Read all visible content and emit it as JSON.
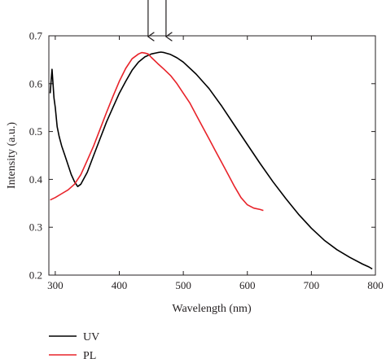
{
  "chart_data": {
    "type": "line",
    "xlabel": "Wavelength (nm)",
    "ylabel": "Intensity (a.u.)",
    "xlim": [
      290,
      800
    ],
    "ylim": [
      0.2,
      0.7
    ],
    "xticks": [
      300,
      400,
      500,
      600,
      700,
      800
    ],
    "yticks": [
      0.2,
      0.3,
      0.4,
      0.5,
      0.6,
      0.7
    ],
    "xtick_labels": [
      "300",
      "400",
      "500",
      "600",
      "700",
      "800"
    ],
    "ytick_labels": [
      "0.2",
      "0.3",
      "0.4",
      "0.5",
      "0.6",
      "0.7"
    ],
    "grid": false,
    "legend_position": "bottom-left, below plot",
    "annotations": [
      {
        "type": "arrow",
        "direction": "down",
        "x": 445
      },
      {
        "type": "arrow",
        "direction": "down",
        "x": 473
      }
    ],
    "series": [
      {
        "name": "UV",
        "color": "#000000",
        "x": [
          292,
          295,
          298,
          300,
          303,
          306,
          310,
          315,
          320,
          325,
          330,
          335,
          340,
          350,
          360,
          370,
          380,
          390,
          400,
          410,
          420,
          430,
          440,
          450,
          460,
          465,
          470,
          480,
          490,
          500,
          520,
          540,
          560,
          580,
          600,
          620,
          640,
          660,
          680,
          700,
          720,
          740,
          760,
          780,
          790,
          795
        ],
        "y": [
          0.58,
          0.63,
          0.57,
          0.55,
          0.51,
          0.49,
          0.47,
          0.45,
          0.43,
          0.41,
          0.395,
          0.385,
          0.39,
          0.415,
          0.45,
          0.485,
          0.52,
          0.55,
          0.58,
          0.605,
          0.628,
          0.645,
          0.656,
          0.662,
          0.665,
          0.666,
          0.665,
          0.661,
          0.654,
          0.645,
          0.62,
          0.59,
          0.553,
          0.513,
          0.473,
          0.433,
          0.395,
          0.36,
          0.327,
          0.298,
          0.273,
          0.253,
          0.237,
          0.223,
          0.217,
          0.213
        ]
      },
      {
        "name": "PL",
        "color": "#e8232a",
        "x": [
          292,
          300,
          310,
          320,
          330,
          340,
          350,
          360,
          370,
          380,
          390,
          400,
          410,
          420,
          430,
          435,
          440,
          445,
          450,
          460,
          470,
          480,
          490,
          500,
          510,
          520,
          530,
          540,
          550,
          560,
          570,
          580,
          590,
          600,
          610,
          620,
          625
        ],
        "y": [
          0.357,
          0.362,
          0.37,
          0.378,
          0.39,
          0.41,
          0.44,
          0.47,
          0.505,
          0.54,
          0.573,
          0.605,
          0.632,
          0.652,
          0.662,
          0.665,
          0.664,
          0.662,
          0.655,
          0.642,
          0.63,
          0.617,
          0.6,
          0.58,
          0.56,
          0.535,
          0.51,
          0.485,
          0.46,
          0.435,
          0.41,
          0.385,
          0.362,
          0.347,
          0.34,
          0.337,
          0.335
        ]
      }
    ]
  }
}
